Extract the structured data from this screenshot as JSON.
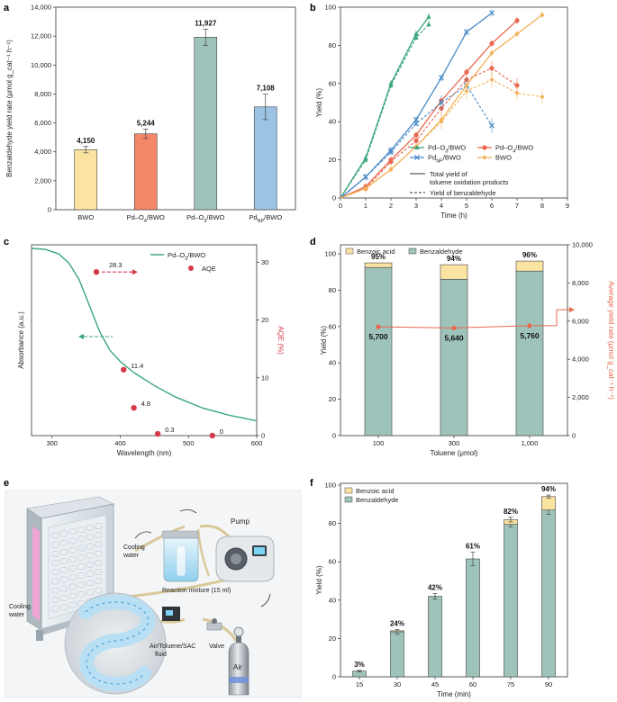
{
  "panels": [
    "a",
    "b",
    "c",
    "d",
    "e",
    "f"
  ],
  "chart_data": [
    {
      "id": "a",
      "type": "bar",
      "ylabel": "Benzaldehyde yield rate (μmol g_cat⁻¹ h⁻¹)",
      "ylim": [
        0,
        14000
      ],
      "yticks": [
        0,
        2000,
        4000,
        6000,
        8000,
        10000,
        12000,
        14000
      ],
      "ytick_labels": [
        "0",
        "2,000",
        "4,000",
        "6,000",
        "8,000",
        "10,000",
        "12,000",
        "14,000"
      ],
      "categories": [
        {
          "label": "BWO",
          "base": "BWO",
          "sub": "",
          "rest": ""
        },
        {
          "label": "Pd–O4/BWO",
          "base": "Pd–O",
          "sub": "4",
          "rest": "/BWO"
        },
        {
          "label": "Pd–O3/BWO",
          "base": "Pd–O",
          "sub": "3",
          "rest": "/BWO"
        },
        {
          "label": "PdNP/BWO",
          "base": "Pd",
          "sub": "NP",
          "rest": "/BWO"
        }
      ],
      "values": [
        4150,
        5244,
        11927,
        7108
      ],
      "errors": [
        220,
        330,
        560,
        880
      ],
      "value_labels": [
        "4,150",
        "5,244",
        "11,927",
        "7,108"
      ],
      "colors": [
        "#fbe3a2",
        "#f4866a",
        "#9ec3ba",
        "#9cc2e4"
      ]
    },
    {
      "id": "b",
      "type": "line",
      "xlabel": "Time (h)",
      "ylabel": "Yield (%)",
      "xlim": [
        0,
        9
      ],
      "ylim": [
        0,
        100
      ],
      "xticks": [
        0,
        1,
        2,
        3,
        4,
        5,
        6,
        7,
        8,
        9
      ],
      "yticks": [
        0,
        20,
        40,
        60,
        80,
        100
      ],
      "series": [
        {
          "name": "Pd–O3/BWO",
          "base": "Pd–O",
          "sub": "3",
          "rest": "/BWO",
          "color": "#3aa67a",
          "marker": "triangle",
          "total": {
            "x": [
              0,
              1,
              2,
              3,
              3.5
            ],
            "y": [
              0,
              21,
              60,
              86,
              95
            ]
          },
          "benz": {
            "x": [
              0,
              1,
              2,
              3,
              3.5
            ],
            "y": [
              0,
              20,
              59,
              84,
              91
            ]
          }
        },
        {
          "name": "Pd–O4/BWO",
          "base": "Pd–O",
          "sub": "4",
          "rest": "/BWO",
          "color": "#e8674e",
          "marker": "circle",
          "total": {
            "x": [
              0,
              1,
              2,
              3,
              4,
              5,
              6,
              7
            ],
            "y": [
              0,
              6,
              20,
              33,
              51,
              66,
              81,
              93
            ]
          },
          "benz": {
            "x": [
              0,
              1,
              2,
              3,
              4,
              5,
              6,
              7
            ],
            "y": [
              0,
              5,
              19,
              30,
              47,
              62,
              68,
              59
            ]
          }
        },
        {
          "name": "PdNP/BWO",
          "base": "Pd",
          "sub": "NP",
          "rest": "/BWO",
          "color": "#4a8ac6",
          "marker": "cross",
          "total": {
            "x": [
              0,
              1,
              2,
              3,
              4,
              5,
              6
            ],
            "y": [
              0,
              11,
              25,
              41,
              63,
              87,
              97
            ]
          },
          "benz": {
            "x": [
              0,
              1,
              2,
              3,
              4,
              5,
              6
            ],
            "y": [
              0,
              11,
              24,
              39,
              50,
              59,
              38
            ]
          }
        },
        {
          "name": "BWO",
          "base": "BWO",
          "sub": "",
          "rest": "",
          "color": "#f2b25a",
          "marker": "diamond",
          "total": {
            "x": [
              0,
              1,
              2,
              3,
              4,
              5,
              6,
              7,
              8
            ],
            "y": [
              0,
              5,
              15,
              27,
              41,
              59,
              76,
              86,
              96
            ]
          },
          "benz": {
            "x": [
              0,
              1,
              2,
              3,
              4,
              5,
              6,
              7,
              8
            ],
            "y": [
              0,
              5,
              15,
              27,
              40,
              56,
              62,
              55,
              53
            ]
          }
        }
      ],
      "line_style_legend": {
        "solid_line1": "Total yield of",
        "solid_line2": "toluene oxidation products",
        "dashed": "Yield of benzaldehyde"
      }
    },
    {
      "id": "c",
      "type": "line",
      "xlabel": "Wavelength (nm)",
      "ylabel_left": "Absorbance (a.u.)",
      "ylabel_right": "AQE (%)",
      "xlim": [
        270,
        600
      ],
      "xticks": [
        300,
        400,
        500,
        600
      ],
      "ylim_right": [
        0,
        33
      ],
      "yticks_right": [
        0,
        10,
        20,
        30
      ],
      "absorbance": {
        "name": "Pd–O3/BWO",
        "base": "Pd–O",
        "sub": "3",
        "rest": "/BWO",
        "color": "#3aa67a",
        "x": [
          270,
          290,
          310,
          325,
          340,
          355,
          370,
          385,
          400,
          420,
          450,
          480,
          520,
          560,
          600
        ],
        "y": [
          1.0,
          0.995,
          0.97,
          0.92,
          0.83,
          0.69,
          0.55,
          0.45,
          0.39,
          0.33,
          0.26,
          0.2,
          0.14,
          0.1,
          0.07
        ]
      },
      "aqe": {
        "name": "AQE",
        "color": "#d63a4a",
        "x": [
          365,
          405,
          420,
          455,
          535
        ],
        "y": [
          28.3,
          11.4,
          4.8,
          0.3,
          0
        ],
        "labels": [
          "28.3",
          "11.4",
          "4.8",
          "0.3",
          "0"
        ]
      }
    },
    {
      "id": "d",
      "type": "bar",
      "xlabel": "Toluene (μmol)",
      "ylabel_left": "Yield (%)",
      "ylabel_right": "Average yield rate (μmol g_cat⁻¹ h⁻¹)",
      "ylim": [
        0,
        100
      ],
      "yticks_left": [
        0,
        20,
        40,
        60,
        80,
        100
      ],
      "ylim_right": [
        0,
        10000
      ],
      "yticks_right_labels": [
        "0",
        "2,000",
        "4,000",
        "6,000",
        "8,000",
        "10,000"
      ],
      "categories": [
        "100",
        "300",
        "1,000"
      ],
      "series": [
        {
          "name": "Benzaldehyde",
          "color": "#9ec3ba",
          "values": [
            92.5,
            86,
            90.5
          ]
        },
        {
          "name": "Benzoic acid",
          "color": "#fbe3a2",
          "values": [
            2.5,
            8,
            5.5
          ]
        }
      ],
      "total_labels": [
        "95%",
        "94%",
        "96%"
      ],
      "rate": {
        "values": [
          5700,
          5640,
          5760
        ],
        "labels": [
          "5,700",
          "5,640",
          "5,760"
        ],
        "color": "#e8674e"
      }
    },
    {
      "id": "f",
      "type": "bar",
      "xlabel": "Time (min)",
      "ylabel": "Yield (%)",
      "ylim": [
        0,
        100
      ],
      "yticks": [
        0,
        20,
        40,
        60,
        80,
        100
      ],
      "categories": [
        "15",
        "30",
        "45",
        "60",
        "75",
        "90"
      ],
      "series": [
        {
          "name": "Benzaldehyde",
          "color": "#9ec3ba",
          "values": [
            3,
            23.5,
            42,
            61.5,
            79.5,
            87
          ],
          "errors": [
            0.4,
            1.2,
            1.5,
            3.5,
            1.2,
            2.3
          ]
        },
        {
          "name": "Benzoic acid",
          "color": "#fbe3a2",
          "values": [
            0,
            0.5,
            0,
            0,
            2.5,
            7
          ],
          "errors": [
            0,
            0,
            0,
            0,
            1.2,
            0.8
          ]
        }
      ],
      "total_labels": [
        "3%",
        "24%",
        "42%",
        "61%",
        "82%",
        "94%"
      ]
    }
  ],
  "illustration": {
    "labels": {
      "cooling_water_left": [
        "Cooling",
        "water"
      ],
      "cooling_water_top": [
        "Cooling",
        "water"
      ],
      "pump": "Pump",
      "reaction_mixture": "Reaction mixture (15 ml)",
      "fluid": [
        "Air/Toluene/SAC",
        "fluid"
      ],
      "valve": "Valve",
      "air": "Air"
    }
  }
}
